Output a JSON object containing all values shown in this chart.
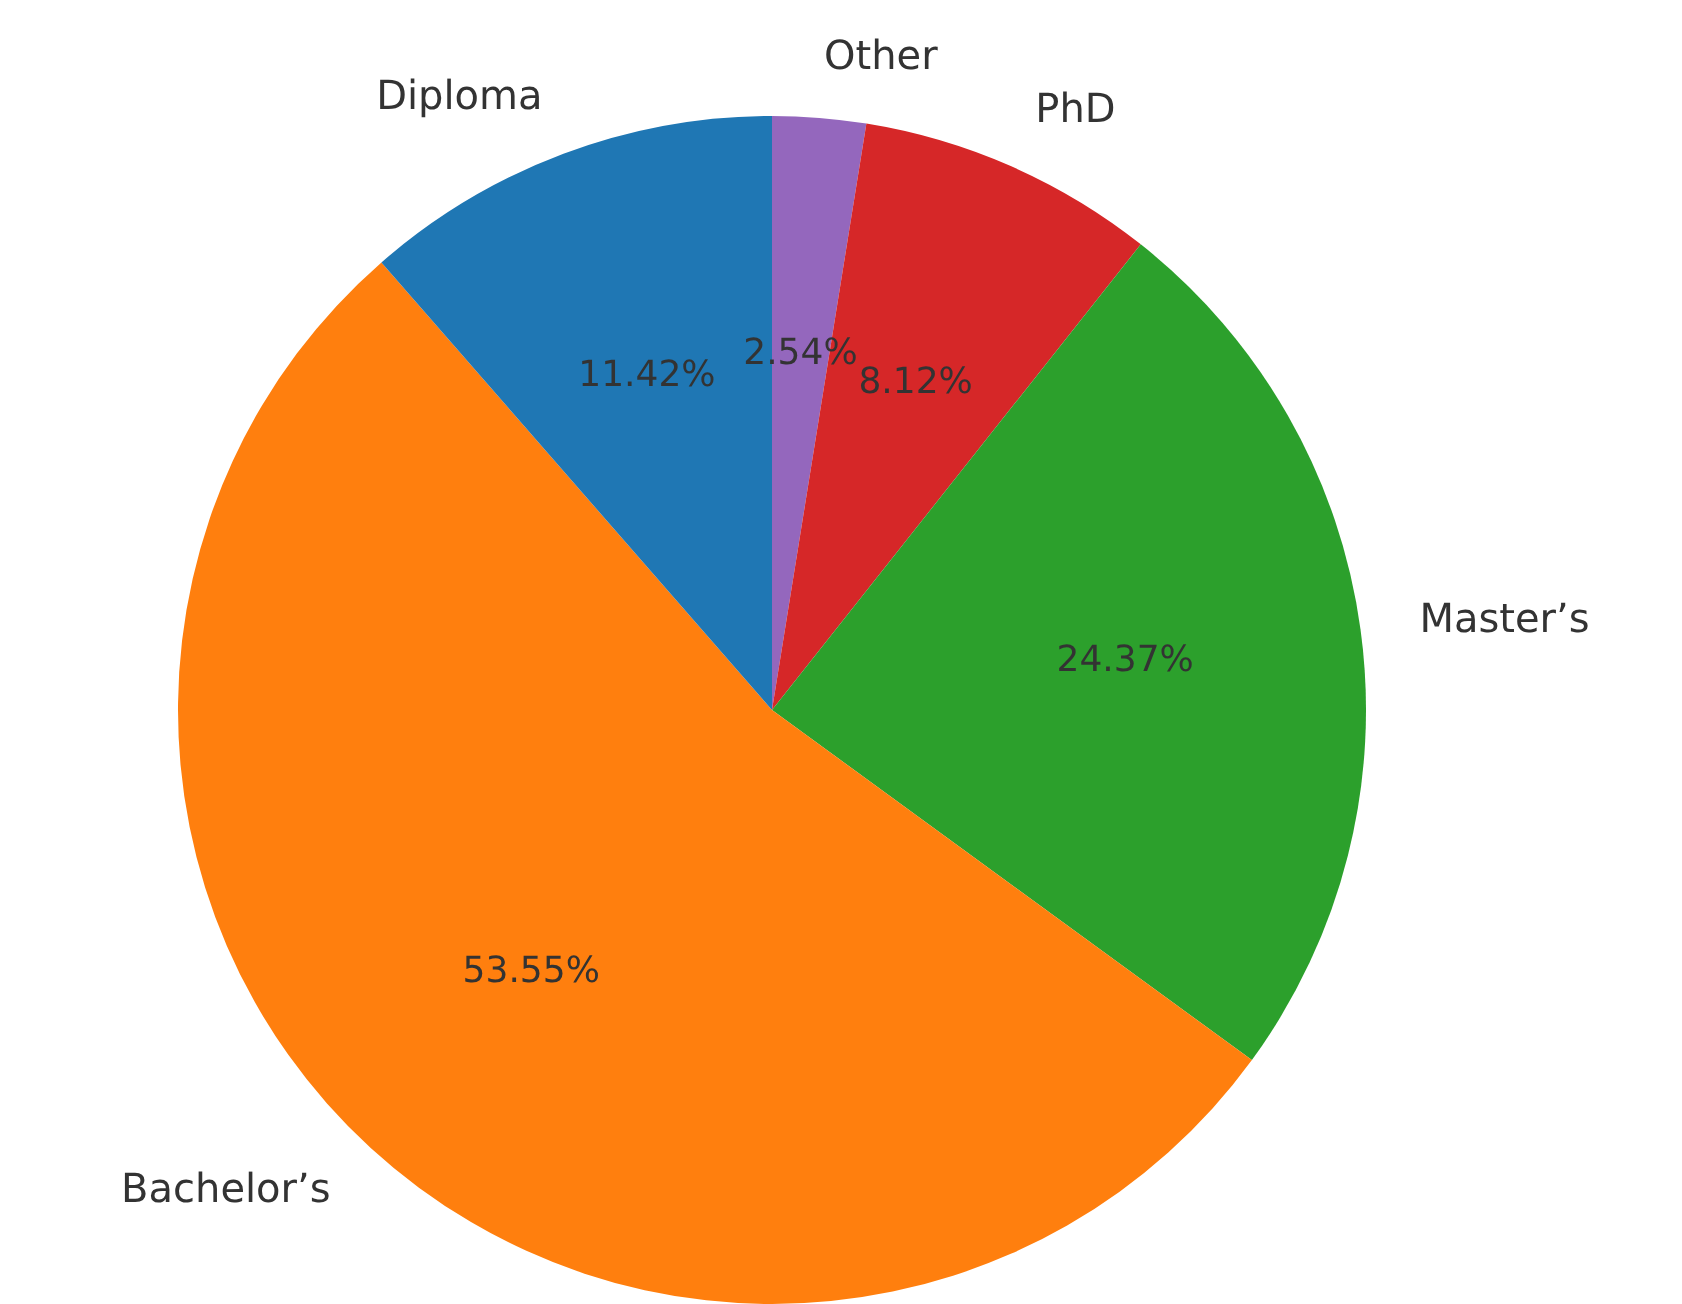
{
  "chart_data": {
    "type": "pie",
    "categories": [
      "Other",
      "PhD",
      "Master’s",
      "Bachelor’s",
      "Diploma"
    ],
    "values": [
      2.54,
      8.12,
      24.37,
      53.55,
      11.42
    ],
    "colors": [
      "#9467bd",
      "#d62728",
      "#2ca02c",
      "#ff7f0e",
      "#1f77b4"
    ],
    "value_labels": [
      "2.54%",
      "8.12%",
      "24.37%",
      "53.55%",
      "11.42%"
    ],
    "legend": false
  }
}
